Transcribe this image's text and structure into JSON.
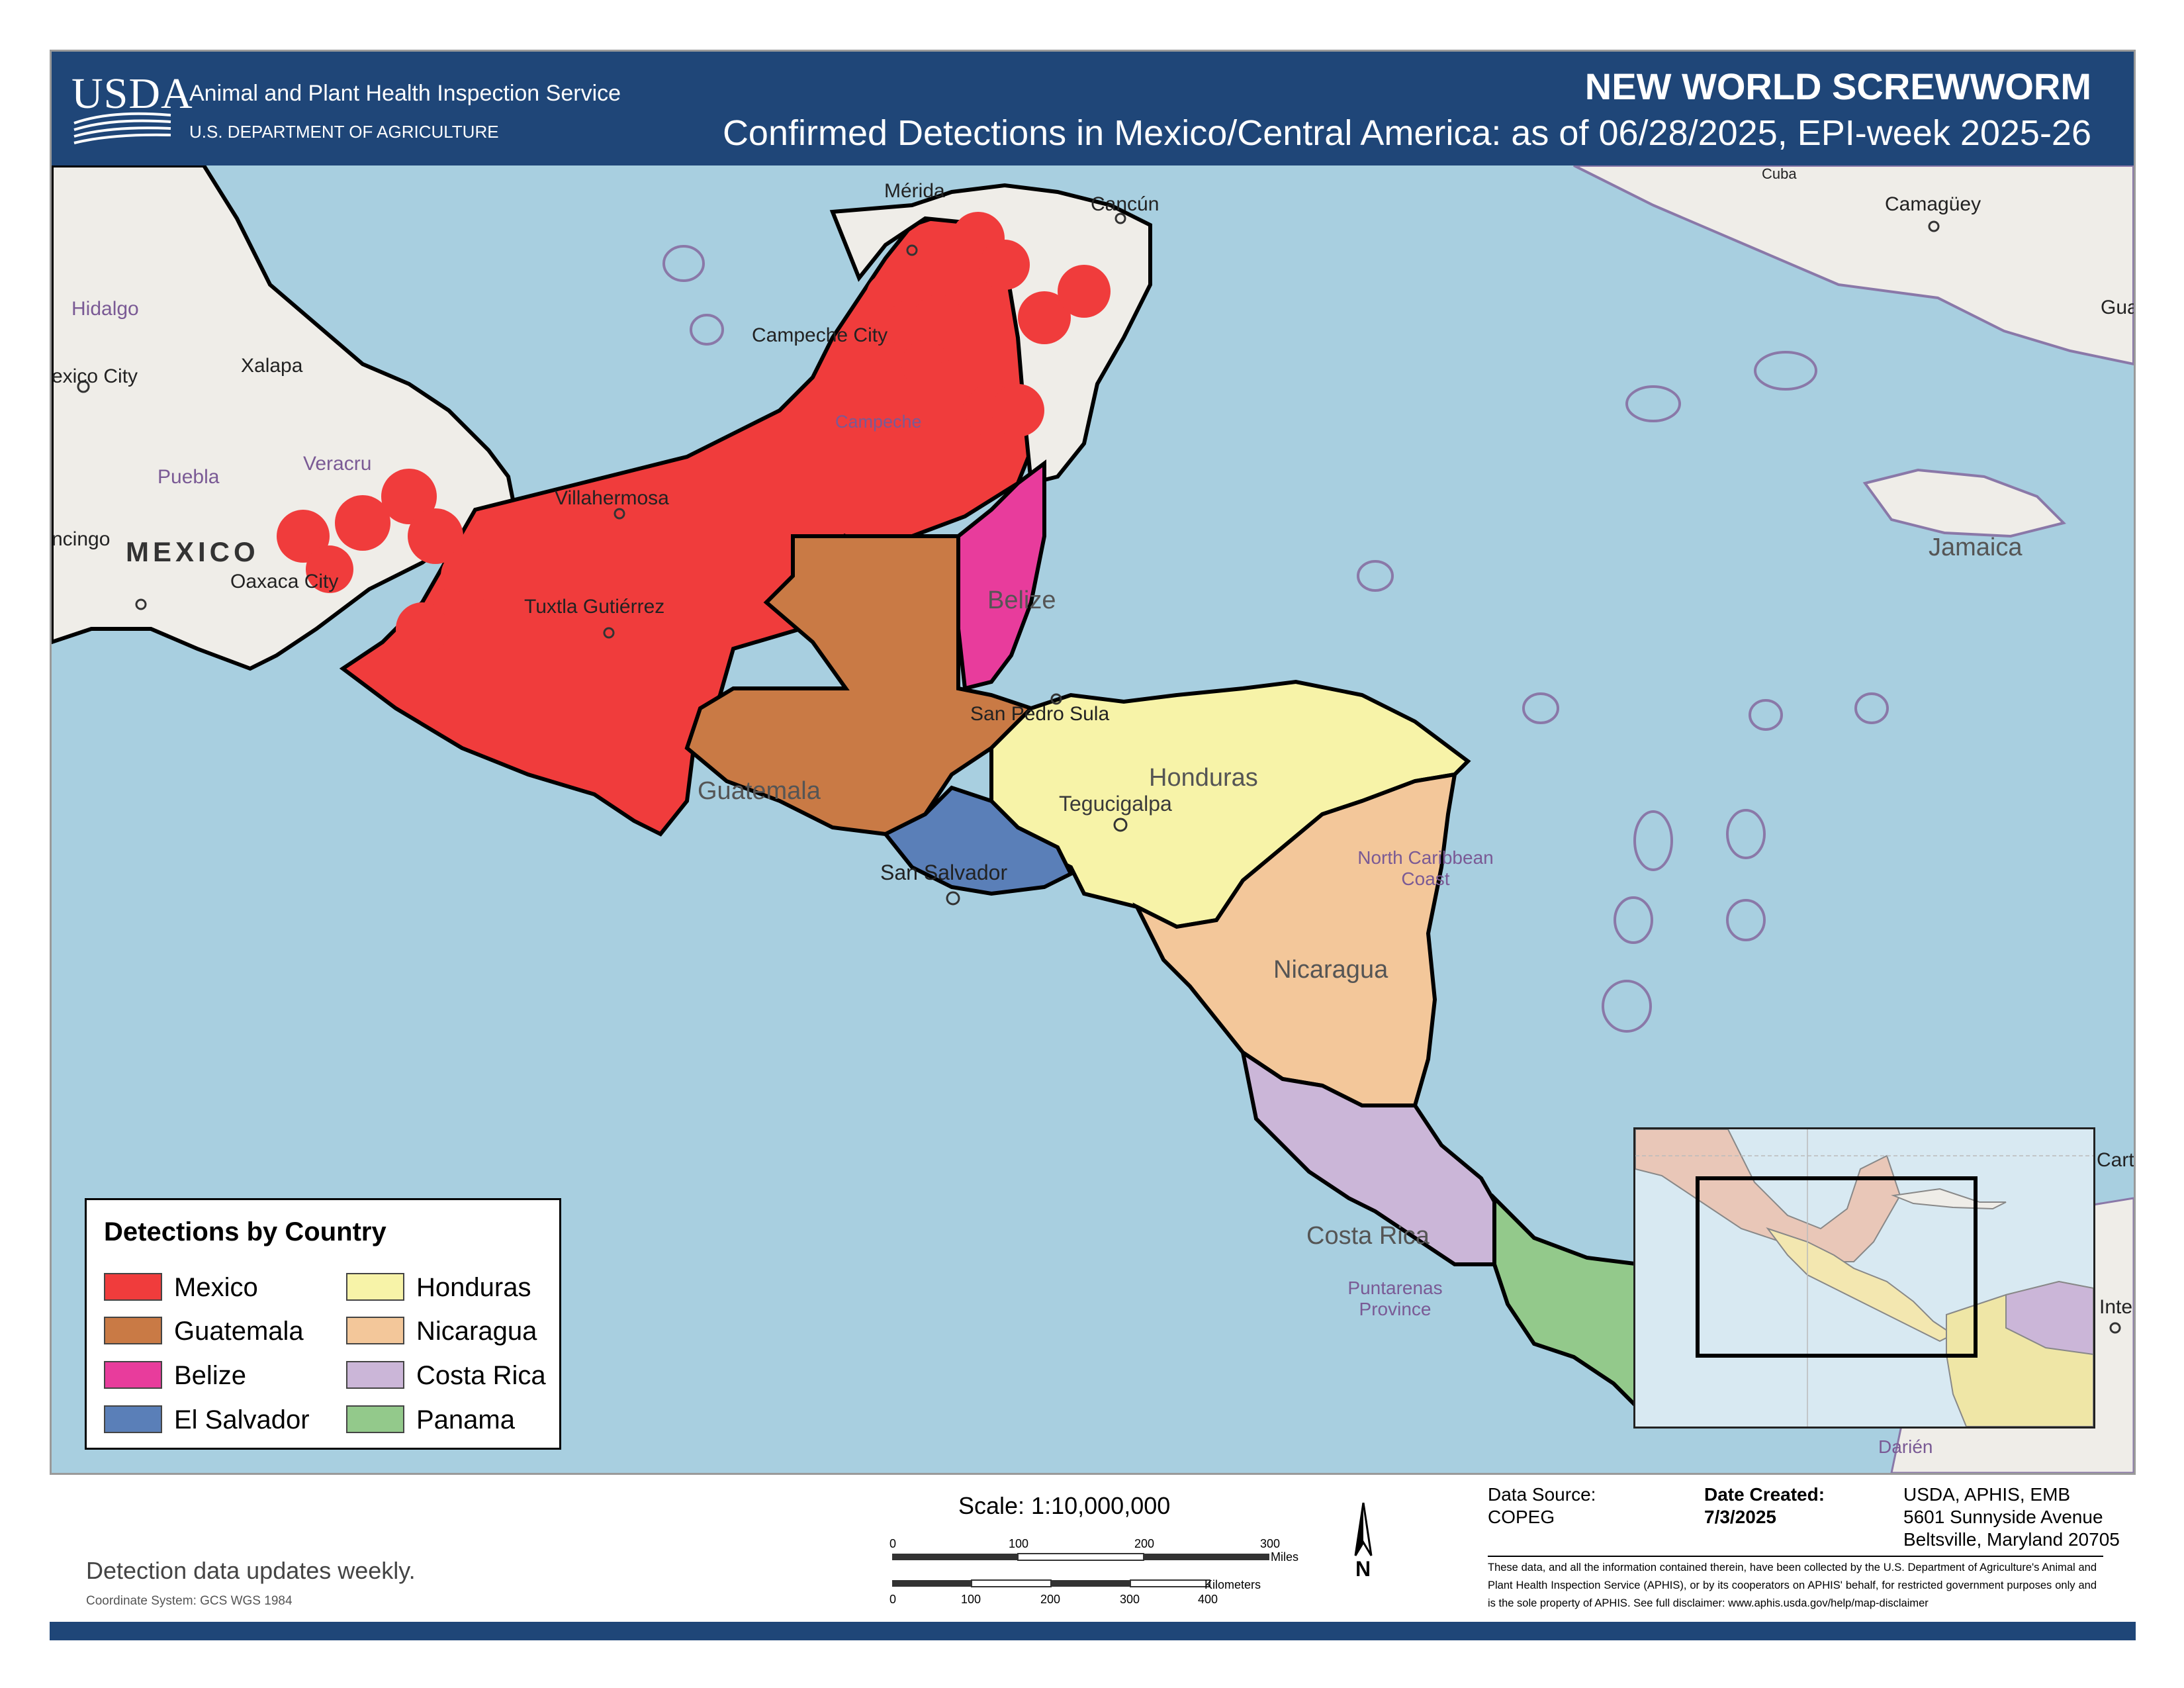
{
  "header": {
    "logo_text": "USDA",
    "agency_name": "Animal and Plant Health Inspection Service",
    "agency_dept": "U.S. DEPARTMENT OF AGRICULTURE",
    "title": "NEW WORLD SCREWWORM",
    "subtitle": "Confirmed Detections in Mexico/Central America: as of 06/28/2025, EPI-week 2025-26"
  },
  "map_labels": {
    "merida": "Mérida",
    "cancun": "Cancún",
    "campeche_city": "Campeche City",
    "campeche": "Campeche",
    "hidalgo": "Hidalgo",
    "mexico_city": "exico City",
    "xalapa": "Xalapa",
    "veracruz": "Veracru",
    "puebla": "Puebla",
    "chilpancingo": "ncingo",
    "mexico": "MEXICO",
    "oaxaca_city": "Oaxaca City",
    "villahermosa": "Villahermosa",
    "tuxtla": "Tuxtla Gutiérrez",
    "belize": "Belize",
    "guatemala": "Guatemala",
    "san_pedro_sula": "San Pedro Sula",
    "honduras": "Honduras",
    "tegucigalpa": "Tegucigalpa",
    "san_salvador": "San Salvador",
    "north_caribbean_coast": "North Caribbean Coast",
    "nicaragua": "Nicaragua",
    "costa_rica": "Costa Rica",
    "puntarenas": "Puntarenas Province",
    "darien": "Darién",
    "camaguey": "Camagüey",
    "cuba": "Cuba",
    "gua": "Gua",
    "jamaica": "Jamaica",
    "carta": "Carta",
    "inte": "Inte"
  },
  "legend": {
    "title": "Detections by Country",
    "items": [
      {
        "label": "Mexico",
        "color": "#f03c3c"
      },
      {
        "label": "Guatemala",
        "color": "#c97a45"
      },
      {
        "label": "Belize",
        "color": "#e83c9c"
      },
      {
        "label": "El Salvador",
        "color": "#5a7fb8"
      },
      {
        "label": "Honduras",
        "color": "#f7f3a8"
      },
      {
        "label": "Nicaragua",
        "color": "#f3c79a"
      },
      {
        "label": "Costa Rica",
        "color": "#cbb6d8"
      },
      {
        "label": "Panama",
        "color": "#93c98b"
      }
    ]
  },
  "footer": {
    "update_note": "Detection data updates weekly.",
    "coordinate_system": "Coordinate System: GCS WGS 1984",
    "scale_label": "Scale: 1:10,000,000",
    "miles_ticks": [
      "0",
      "100",
      "200",
      "300"
    ],
    "miles_unit": "Miles",
    "km_ticks": [
      "0",
      "100",
      "200",
      "300",
      "400"
    ],
    "km_unit": "Kilometers",
    "north_label": "N",
    "data_source_label": "Data Source:",
    "data_source_value": "COPEG",
    "date_created_label": "Date Created:",
    "date_created_value": "7/3/2025",
    "address_lines": [
      "USDA, APHIS, EMB",
      "5601 Sunnyside Avenue",
      "Beltsville, Maryland 20705"
    ],
    "disclaimer": "These data, and all the information contained therein, have been collected by the U.S. Department of Agriculture's Animal and Plant Health Inspection Service (APHIS), or by its cooperators on APHIS' behalf, for restricted government purposes only and is the sole property of APHIS. See full disclaimer: www.aphis.usda.gov/help/map-disclaimer"
  }
}
